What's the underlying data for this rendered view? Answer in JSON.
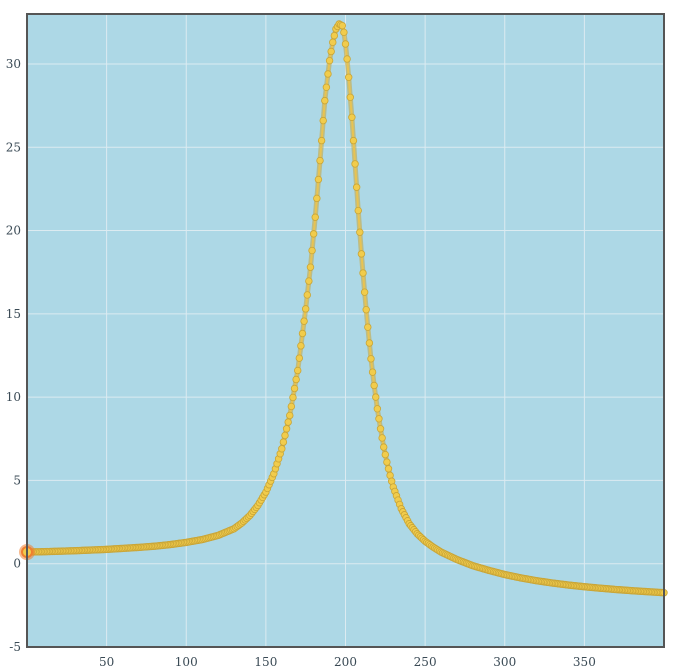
{
  "colors": {
    "plot_background": "#add8e6",
    "grid": "#dcebf1",
    "frame": "#555555",
    "series_line": "#e8c352",
    "series_point": "#f1cc4c",
    "point_edge": "#c9a537",
    "highlight_point": "#f07f2f"
  },
  "chart_data": {
    "type": "line",
    "title": "",
    "xlabel": "",
    "ylabel": "",
    "xlim": [
      0,
      400
    ],
    "ylim": [
      -5,
      33
    ],
    "x_ticks": [
      50,
      100,
      150,
      200,
      250,
      300,
      350
    ],
    "y_ticks": [
      -5,
      0,
      5,
      10,
      15,
      20,
      25,
      30
    ],
    "grid": true,
    "legend": "none",
    "highlighted_point": {
      "x": 0,
      "y": 0.7
    },
    "series": [
      {
        "x": [
          0,
          10,
          20,
          30,
          40,
          50,
          60,
          70,
          80,
          90,
          100,
          110,
          120,
          130,
          135,
          140,
          145,
          150,
          155,
          160,
          165,
          170,
          175,
          178,
          181,
          184,
          187,
          190,
          192,
          194,
          196,
          198,
          199,
          200,
          201,
          202,
          204,
          206,
          208,
          210,
          212,
          214,
          216,
          218,
          220,
          222,
          224,
          226,
          228,
          230,
          235,
          240,
          245,
          250,
          255,
          260,
          270,
          280,
          290,
          300,
          310,
          320,
          330,
          340,
          350,
          360,
          370,
          380,
          390,
          400
        ],
        "y": [
          0.7,
          0.72,
          0.75,
          0.78,
          0.82,
          0.86,
          0.92,
          0.98,
          1.05,
          1.15,
          1.28,
          1.45,
          1.7,
          2.1,
          2.45,
          2.9,
          3.5,
          4.3,
          5.4,
          6.9,
          8.9,
          11.6,
          15.3,
          17.8,
          20.8,
          24.2,
          27.8,
          30.2,
          31.3,
          32.1,
          32.4,
          32.3,
          31.9,
          31.2,
          30.3,
          29.2,
          26.8,
          24.0,
          21.2,
          18.6,
          16.3,
          14.2,
          12.3,
          10.7,
          9.3,
          8.1,
          7.0,
          6.1,
          5.3,
          4.6,
          3.3,
          2.4,
          1.8,
          1.35,
          1.0,
          0.7,
          0.25,
          -0.12,
          -0.4,
          -0.65,
          -0.85,
          -1.02,
          -1.16,
          -1.28,
          -1.38,
          -1.47,
          -1.55,
          -1.62,
          -1.68,
          -1.74
        ]
      }
    ]
  }
}
